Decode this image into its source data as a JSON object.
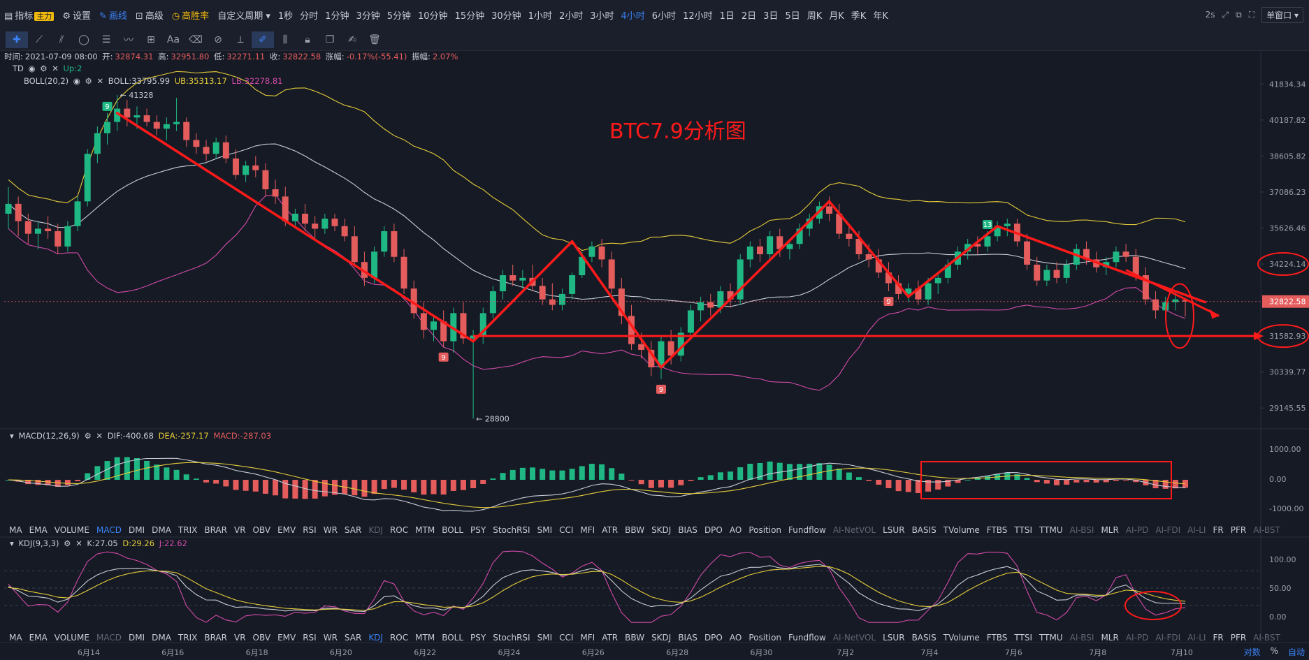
{
  "topbar": {
    "indicator_label": "指标",
    "indicator_badge": "主力",
    "settings_label": "设置",
    "draw_label": "画线",
    "advanced_label": "高级",
    "winrate_label": "高胜率",
    "custom_period_label": "自定义周期",
    "periods": [
      "1秒",
      "分时",
      "1分钟",
      "3分钟",
      "5分钟",
      "10分钟",
      "15分钟",
      "30分钟",
      "1小时",
      "2小时",
      "3小时",
      "4小时",
      "6小时",
      "12小时",
      "1日",
      "2日",
      "3日",
      "5日",
      "周K",
      "月K",
      "季K",
      "年K"
    ],
    "active_period": "4小时",
    "refresh_label": "2s",
    "window_label": "单窗口"
  },
  "info": {
    "time_label": "时间:",
    "time": "2021-07-09 08:00",
    "open_label": "开:",
    "open": "32874.31",
    "high_label": "高:",
    "high": "32951.80",
    "low_label": "低:",
    "low": "32271.11",
    "close_label": "收:",
    "close": "32822.58",
    "change_label": "涨幅:",
    "change": "-0.17%(-55.41)",
    "amp_label": "振幅:",
    "amp": "2.07%"
  },
  "td_legend": {
    "name": "TD",
    "value": "Up:2"
  },
  "boll_legend": {
    "name": "BOLL(20,2)",
    "boll": "BOLL:33795.99",
    "ub": "UB:35313.17",
    "lb": "LB:32278.81"
  },
  "macd_legend": {
    "name": "MACD(12,26,9)",
    "dif": "DIF:-400.68",
    "dea": "DEA:-257.17",
    "macd": "MACD:-287.03"
  },
  "kdj_legend": {
    "name": "KDJ(9,3,3)",
    "k": "K:27.05",
    "d": "D:29.26",
    "j": "J:22.62"
  },
  "indicator_tabs": [
    "MA",
    "EMA",
    "VOLUME",
    "MACD",
    "DMI",
    "DMA",
    "TRIX",
    "BRAR",
    "VR",
    "OBV",
    "EMV",
    "RSI",
    "WR",
    "SAR",
    "KDJ",
    "ROC",
    "MTM",
    "BOLL",
    "PSY",
    "StochRSI",
    "SMI",
    "CCI",
    "MFI",
    "ATR",
    "BBW",
    "SKDJ",
    "BIAS",
    "DPO",
    "AO",
    "Position",
    "Fundflow",
    "AI-NetVOL",
    "LSUR",
    "BASIS",
    "TVolume",
    "FTBS",
    "TTSI",
    "TTMU",
    "AI-BSI",
    "MLR",
    "AI-PD",
    "AI-FDI",
    "AI-LI",
    "FR",
    "PFR",
    "AI-BST"
  ],
  "tabs_row1_active": "MACD",
  "tabs_row1_dim": [
    "KDJ",
    "AI-NetVOL",
    "AI-BSI",
    "AI-PD",
    "AI-FDI",
    "AI-LI",
    "AI-BST"
  ],
  "tabs_row2_active": "KDJ",
  "tabs_row2_dim": [
    "MACD",
    "AI-NetVOL",
    "AI-BSI",
    "AI-PD",
    "AI-FDI",
    "AI-LI",
    "AI-BST"
  ],
  "annotation_title": "BTC7.9分析图",
  "price_axis": [
    "41834.34",
    "40187.82",
    "38605.82",
    "37086.23",
    "35626.46",
    "34224.14",
    "32822.58",
    "31582.93",
    "30339.77",
    "29145.55"
  ],
  "price_marks": {
    "high": "← 41328",
    "low": "← 28800"
  },
  "macd_axis": [
    "1000.00",
    "0.00",
    "-1000.00"
  ],
  "kdj_axis": [
    "100.00",
    "50.00",
    "0.00"
  ],
  "dates": [
    "6月14",
    "6月16",
    "6月18",
    "6月20",
    "6月22",
    "6月24",
    "6月26",
    "6月28",
    "6月30",
    "7月2",
    "7月4",
    "7月6",
    "7月8",
    "7月10"
  ],
  "bottom_right": {
    "pair_label": "对数",
    "percent_label": "%",
    "auto_label": "自动"
  },
  "td_counts": [
    "9",
    "9",
    "9",
    "9",
    "13"
  ],
  "colors": {
    "up": "#e55c5c",
    "down": "#1fb884",
    "boll_mid": "#c8ccd6",
    "boll_up": "#e5cc3a",
    "boll_low": "#d14ba8",
    "annotation": "#ff1a1a",
    "bg": "#161a25"
  },
  "chart_data": {
    "type": "candlestick",
    "title": "BTC7.9分析图",
    "interval": "4小时",
    "ylim": [
      28500,
      42500
    ],
    "price_scale": "log",
    "candles": [
      {
        "t": "6月13",
        "o": 36200,
        "h": 37300,
        "l": 35600,
        "c": 36600
      },
      {
        "t": "6月13",
        "o": 36600,
        "h": 36900,
        "l": 35300,
        "c": 35900
      },
      {
        "t": "6月13",
        "o": 35900,
        "h": 36200,
        "l": 35000,
        "c": 35400
      },
      {
        "t": "6月13",
        "o": 35400,
        "h": 35900,
        "l": 34800,
        "c": 35600
      },
      {
        "t": "6月14",
        "o": 35600,
        "h": 36100,
        "l": 35200,
        "c": 35500
      },
      {
        "t": "6月14",
        "o": 35500,
        "h": 35800,
        "l": 34600,
        "c": 34900
      },
      {
        "t": "6月14",
        "o": 34900,
        "h": 35900,
        "l": 34700,
        "c": 35700
      },
      {
        "t": "6月14",
        "o": 35700,
        "h": 36900,
        "l": 35500,
        "c": 36700
      },
      {
        "t": "6月14",
        "o": 36700,
        "h": 38900,
        "l": 36500,
        "c": 38700
      },
      {
        "t": "6月14",
        "o": 38700,
        "h": 39900,
        "l": 38300,
        "c": 39600
      },
      {
        "t": "6月15",
        "o": 39600,
        "h": 40500,
        "l": 39100,
        "c": 40100
      },
      {
        "t": "6月15",
        "o": 40100,
        "h": 41328,
        "l": 39700,
        "c": 40700
      },
      {
        "t": "6月15",
        "o": 40700,
        "h": 41100,
        "l": 39900,
        "c": 40300
      },
      {
        "t": "6月15",
        "o": 40300,
        "h": 40800,
        "l": 39800,
        "c": 40400
      },
      {
        "t": "6月15",
        "o": 40400,
        "h": 40700,
        "l": 39900,
        "c": 40100
      },
      {
        "t": "6月16",
        "o": 40100,
        "h": 40400,
        "l": 39500,
        "c": 39800
      },
      {
        "t": "6月16",
        "o": 39800,
        "h": 40300,
        "l": 39300,
        "c": 40000
      },
      {
        "t": "6月16",
        "o": 40000,
        "h": 41200,
        "l": 39700,
        "c": 40100
      },
      {
        "t": "6月16",
        "o": 40100,
        "h": 40300,
        "l": 39000,
        "c": 39300
      },
      {
        "t": "6月16",
        "o": 39300,
        "h": 39600,
        "l": 38700,
        "c": 39000
      },
      {
        "t": "6月17",
        "o": 39000,
        "h": 39300,
        "l": 38400,
        "c": 38700
      },
      {
        "t": "6月17",
        "o": 38700,
        "h": 39400,
        "l": 38500,
        "c": 39200
      },
      {
        "t": "6月17",
        "o": 39200,
        "h": 39500,
        "l": 38300,
        "c": 38500
      },
      {
        "t": "6月17",
        "o": 38500,
        "h": 38900,
        "l": 37600,
        "c": 37800
      },
      {
        "t": "6月17",
        "o": 37800,
        "h": 38400,
        "l": 37500,
        "c": 38200
      },
      {
        "t": "6月18",
        "o": 38200,
        "h": 38600,
        "l": 37700,
        "c": 38000
      },
      {
        "t": "6月18",
        "o": 38000,
        "h": 38300,
        "l": 36900,
        "c": 37200
      },
      {
        "t": "6月18",
        "o": 37200,
        "h": 37600,
        "l": 36600,
        "c": 36900
      },
      {
        "t": "6月18",
        "o": 36900,
        "h": 37300,
        "l": 35700,
        "c": 35900
      },
      {
        "t": "6月18",
        "o": 35900,
        "h": 36400,
        "l": 35600,
        "c": 36200
      },
      {
        "t": "6月19",
        "o": 36200,
        "h": 36600,
        "l": 35500,
        "c": 35800
      },
      {
        "t": "6月19",
        "o": 35800,
        "h": 36100,
        "l": 35200,
        "c": 35600
      },
      {
        "t": "6月19",
        "o": 35600,
        "h": 36200,
        "l": 35400,
        "c": 36000
      },
      {
        "t": "6月19",
        "o": 36000,
        "h": 36200,
        "l": 35500,
        "c": 35700
      },
      {
        "t": "6月19",
        "o": 35700,
        "h": 36000,
        "l": 35100,
        "c": 35300
      },
      {
        "t": "6月20",
        "o": 35300,
        "h": 35700,
        "l": 34100,
        "c": 34300
      },
      {
        "t": "6月20",
        "o": 34300,
        "h": 34700,
        "l": 33400,
        "c": 33700
      },
      {
        "t": "6月20",
        "o": 33700,
        "h": 34900,
        "l": 33500,
        "c": 34700
      },
      {
        "t": "6月20",
        "o": 34700,
        "h": 35700,
        "l": 34500,
        "c": 35500
      },
      {
        "t": "6月20",
        "o": 35500,
        "h": 35800,
        "l": 34300,
        "c": 34500
      },
      {
        "t": "6月21",
        "o": 34500,
        "h": 34800,
        "l": 33100,
        "c": 33300
      },
      {
        "t": "6月21",
        "o": 33300,
        "h": 33600,
        "l": 32200,
        "c": 32400
      },
      {
        "t": "6月21",
        "o": 32400,
        "h": 32800,
        "l": 31500,
        "c": 31800
      },
      {
        "t": "6月21",
        "o": 31800,
        "h": 32300,
        "l": 31400,
        "c": 32100
      },
      {
        "t": "6月21",
        "o": 32100,
        "h": 32500,
        "l": 31200,
        "c": 31400
      },
      {
        "t": "6月22",
        "o": 31400,
        "h": 32600,
        "l": 31000,
        "c": 32400
      },
      {
        "t": "6月22",
        "o": 32400,
        "h": 32800,
        "l": 31300,
        "c": 31500
      },
      {
        "t": "6月22",
        "o": 31500,
        "h": 31800,
        "l": 28800,
        "c": 31600
      },
      {
        "t": "6月22",
        "o": 31600,
        "h": 32600,
        "l": 31300,
        "c": 32400
      },
      {
        "t": "6月22",
        "o": 32400,
        "h": 33400,
        "l": 32200,
        "c": 33200
      },
      {
        "t": "6月23",
        "o": 33200,
        "h": 34000,
        "l": 32900,
        "c": 33800
      },
      {
        "t": "6月23",
        "o": 33800,
        "h": 34200,
        "l": 33400,
        "c": 33600
      },
      {
        "t": "6月23",
        "o": 33600,
        "h": 34000,
        "l": 33300,
        "c": 33700
      },
      {
        "t": "6月23",
        "o": 33700,
        "h": 34200,
        "l": 33200,
        "c": 33400
      },
      {
        "t": "6月23",
        "o": 33400,
        "h": 33700,
        "l": 32700,
        "c": 32900
      },
      {
        "t": "6月24",
        "o": 32900,
        "h": 33500,
        "l": 32500,
        "c": 32700
      },
      {
        "t": "6月24",
        "o": 32700,
        "h": 33300,
        "l": 32500,
        "c": 33100
      },
      {
        "t": "6月24",
        "o": 33100,
        "h": 33900,
        "l": 32900,
        "c": 33800
      },
      {
        "t": "6月24",
        "o": 33800,
        "h": 34700,
        "l": 33700,
        "c": 34500
      },
      {
        "t": "6月24",
        "o": 34500,
        "h": 35100,
        "l": 34300,
        "c": 34900
      },
      {
        "t": "6月25",
        "o": 34900,
        "h": 35200,
        "l": 34100,
        "c": 34400
      },
      {
        "t": "6月25",
        "o": 34400,
        "h": 34700,
        "l": 33100,
        "c": 33300
      },
      {
        "t": "6月25",
        "o": 33300,
        "h": 33700,
        "l": 32000,
        "c": 32300
      },
      {
        "t": "6月25",
        "o": 32300,
        "h": 32700,
        "l": 31100,
        "c": 31300
      },
      {
        "t": "6月25",
        "o": 31300,
        "h": 31700,
        "l": 30800,
        "c": 31100
      },
      {
        "t": "6月26",
        "o": 31100,
        "h": 31400,
        "l": 30200,
        "c": 30500
      },
      {
        "t": "6月26",
        "o": 30500,
        "h": 31600,
        "l": 30100,
        "c": 31400
      },
      {
        "t": "6月26",
        "o": 31400,
        "h": 31800,
        "l": 30600,
        "c": 30900
      },
      {
        "t": "6月26",
        "o": 30900,
        "h": 31900,
        "l": 30700,
        "c": 31700
      },
      {
        "t": "6月26",
        "o": 31700,
        "h": 32700,
        "l": 31500,
        "c": 32500
      },
      {
        "t": "6月27",
        "o": 32500,
        "h": 33000,
        "l": 32100,
        "c": 32800
      },
      {
        "t": "6月27",
        "o": 32800,
        "h": 33100,
        "l": 32300,
        "c": 32600
      },
      {
        "t": "6月27",
        "o": 32600,
        "h": 33400,
        "l": 32400,
        "c": 33200
      },
      {
        "t": "6月27",
        "o": 33200,
        "h": 33500,
        "l": 32600,
        "c": 32900
      },
      {
        "t": "6月27",
        "o": 32900,
        "h": 34600,
        "l": 32700,
        "c": 34400
      },
      {
        "t": "6月28",
        "o": 34400,
        "h": 35100,
        "l": 34100,
        "c": 34900
      },
      {
        "t": "6月28",
        "o": 34900,
        "h": 35200,
        "l": 34300,
        "c": 34600
      },
      {
        "t": "6月28",
        "o": 34600,
        "h": 35500,
        "l": 34400,
        "c": 35300
      },
      {
        "t": "6月28",
        "o": 35300,
        "h": 35600,
        "l": 34500,
        "c": 34800
      },
      {
        "t": "6月28",
        "o": 34800,
        "h": 35200,
        "l": 34400,
        "c": 35000
      },
      {
        "t": "6月29",
        "o": 35000,
        "h": 35800,
        "l": 34800,
        "c": 35600
      },
      {
        "t": "6月29",
        "o": 35600,
        "h": 36200,
        "l": 35300,
        "c": 36000
      },
      {
        "t": "6月29",
        "o": 36000,
        "h": 36700,
        "l": 35800,
        "c": 36500
      },
      {
        "t": "6月29",
        "o": 36500,
        "h": 36900,
        "l": 35900,
        "c": 36200
      },
      {
        "t": "6月30",
        "o": 36200,
        "h": 36600,
        "l": 35200,
        "c": 35400
      },
      {
        "t": "6月30",
        "o": 35400,
        "h": 35800,
        "l": 34900,
        "c": 35200
      },
      {
        "t": "6月30",
        "o": 35200,
        "h": 35500,
        "l": 34400,
        "c": 34600
      },
      {
        "t": "6月30",
        "o": 34600,
        "h": 35000,
        "l": 34100,
        "c": 34400
      },
      {
        "t": "7月1",
        "o": 34400,
        "h": 34800,
        "l": 33700,
        "c": 33900
      },
      {
        "t": "7月1",
        "o": 33900,
        "h": 34300,
        "l": 33200,
        "c": 33500
      },
      {
        "t": "7月1",
        "o": 33500,
        "h": 33800,
        "l": 32900,
        "c": 33100
      },
      {
        "t": "7月1",
        "o": 33100,
        "h": 33500,
        "l": 32800,
        "c": 33300
      },
      {
        "t": "7月2",
        "o": 33300,
        "h": 33600,
        "l": 32700,
        "c": 32900
      },
      {
        "t": "7月2",
        "o": 32900,
        "h": 33700,
        "l": 32700,
        "c": 33500
      },
      {
        "t": "7月2",
        "o": 33500,
        "h": 33900,
        "l": 33100,
        "c": 33700
      },
      {
        "t": "7月3",
        "o": 33700,
        "h": 34400,
        "l": 33500,
        "c": 34200
      },
      {
        "t": "7月3",
        "o": 34200,
        "h": 34900,
        "l": 34000,
        "c": 34700
      },
      {
        "t": "7月3",
        "o": 34700,
        "h": 35200,
        "l": 34400,
        "c": 35000
      },
      {
        "t": "7月4",
        "o": 35000,
        "h": 35300,
        "l": 34600,
        "c": 34900
      },
      {
        "t": "7月4",
        "o": 34900,
        "h": 35500,
        "l": 34700,
        "c": 35300
      },
      {
        "t": "7月4",
        "o": 35300,
        "h": 35900,
        "l": 35100,
        "c": 35700
      },
      {
        "t": "7月4",
        "o": 35700,
        "h": 36000,
        "l": 35300,
        "c": 35800
      },
      {
        "t": "7月5",
        "o": 35800,
        "h": 36000,
        "l": 34900,
        "c": 35100
      },
      {
        "t": "7月5",
        "o": 35100,
        "h": 35400,
        "l": 34000,
        "c": 34200
      },
      {
        "t": "7月5",
        "o": 34200,
        "h": 34500,
        "l": 33400,
        "c": 33600
      },
      {
        "t": "7月5",
        "o": 33600,
        "h": 34200,
        "l": 33400,
        "c": 34000
      },
      {
        "t": "7月6",
        "o": 34000,
        "h": 34300,
        "l": 33500,
        "c": 33700
      },
      {
        "t": "7月6",
        "o": 33700,
        "h": 34400,
        "l": 33500,
        "c": 34200
      },
      {
        "t": "7月6",
        "o": 34200,
        "h": 35000,
        "l": 34000,
        "c": 34800
      },
      {
        "t": "7月6",
        "o": 34800,
        "h": 35100,
        "l": 34200,
        "c": 34400
      },
      {
        "t": "7月7",
        "o": 34400,
        "h": 34700,
        "l": 33900,
        "c": 34100
      },
      {
        "t": "7月7",
        "o": 34100,
        "h": 34500,
        "l": 33800,
        "c": 34300
      },
      {
        "t": "7月7",
        "o": 34300,
        "h": 34900,
        "l": 34100,
        "c": 34700
      },
      {
        "t": "7月7",
        "o": 34700,
        "h": 35000,
        "l": 34300,
        "c": 34500
      },
      {
        "t": "7月8",
        "o": 34500,
        "h": 34800,
        "l": 33600,
        "c": 33800
      },
      {
        "t": "7月8",
        "o": 33800,
        "h": 34100,
        "l": 32700,
        "c": 32900
      },
      {
        "t": "7月8",
        "o": 32900,
        "h": 33200,
        "l": 32200,
        "c": 32500
      },
      {
        "t": "7月8",
        "o": 32500,
        "h": 33000,
        "l": 32300,
        "c": 32800
      },
      {
        "t": "7月9",
        "o": 32800,
        "h": 33200,
        "l": 32500,
        "c": 32900
      },
      {
        "t": "7月9",
        "o": 32874.31,
        "h": 32951.8,
        "l": 32271.11,
        "c": 32822.58
      }
    ],
    "horizontal_level": 31582.93,
    "current_price": 32822.58
  }
}
